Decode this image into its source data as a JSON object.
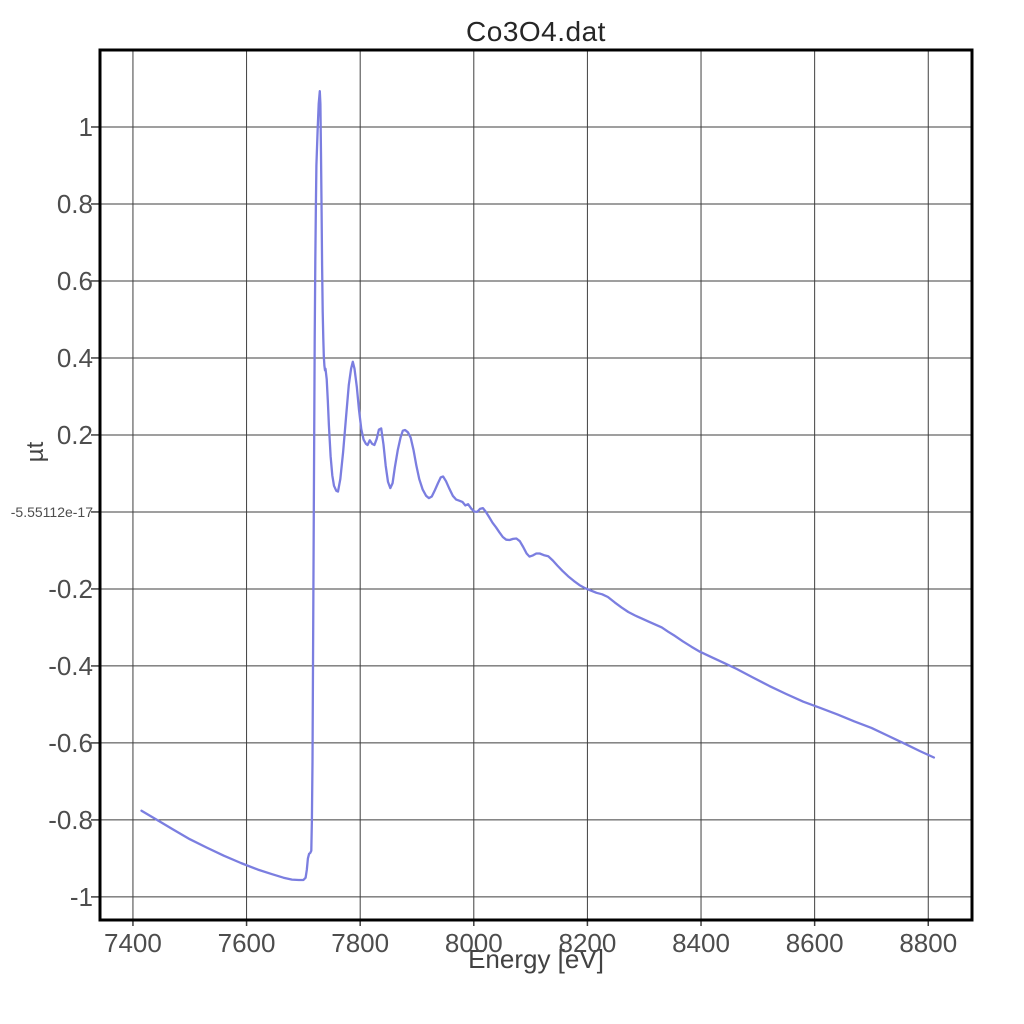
{
  "chart": {
    "title": "Co3O4.dat",
    "xlabel": "Energy [eV]",
    "ylabel": "µt"
  },
  "colors": {
    "line": "#7b7ee0",
    "grid": "#3f3f3f",
    "axis_border": "#000000",
    "tick_label": "#4d4d4d",
    "background": "#ffffff"
  },
  "chart_data": {
    "type": "line",
    "title": "Co3O4.dat",
    "xlabel": "Energy [eV]",
    "ylabel": "µt",
    "xlim": [
      7342,
      8877
    ],
    "ylim": [
      -1.06,
      1.2
    ],
    "grid": true,
    "legend": false,
    "x_ticks": {
      "values": [
        7400,
        7600,
        7800,
        8000,
        8200,
        8400,
        8600,
        8800
      ],
      "labels": [
        "7400",
        "7600",
        "7800",
        "8000",
        "8200",
        "8400",
        "8600",
        "8800"
      ]
    },
    "y_ticks": {
      "values": [
        1,
        0.8,
        0.6,
        0.4,
        0.2,
        0,
        -0.2,
        -0.4,
        -0.6,
        -0.8,
        -1
      ],
      "labels": [
        "1",
        "0.8",
        "0.6",
        "0.4",
        "0.2",
        "-5.55112e-17",
        "-0.2",
        "-0.4",
        "-0.6",
        "-0.8",
        "-1"
      ]
    },
    "series": [
      {
        "name": "Co3O4.dat",
        "color": "#7b7ee0",
        "points": [
          [
            7415,
            -0.776
          ],
          [
            7440,
            -0.798
          ],
          [
            7470,
            -0.824
          ],
          [
            7500,
            -0.85
          ],
          [
            7530,
            -0.872
          ],
          [
            7560,
            -0.893
          ],
          [
            7590,
            -0.912
          ],
          [
            7620,
            -0.929
          ],
          [
            7645,
            -0.941
          ],
          [
            7665,
            -0.95
          ],
          [
            7680,
            -0.955
          ],
          [
            7692,
            -0.956
          ],
          [
            7700,
            -0.956
          ],
          [
            7704,
            -0.95
          ],
          [
            7706,
            -0.93
          ],
          [
            7708,
            -0.9
          ],
          [
            7710,
            -0.888
          ],
          [
            7712,
            -0.886
          ],
          [
            7714,
            -0.88
          ],
          [
            7715,
            -0.8
          ],
          [
            7716,
            -0.65
          ],
          [
            7717,
            -0.4
          ],
          [
            7718,
            -0.1
          ],
          [
            7719,
            0.2
          ],
          [
            7720,
            0.45
          ],
          [
            7721,
            0.65
          ],
          [
            7722,
            0.8
          ],
          [
            7723,
            0.9
          ],
          [
            7725,
            0.99
          ],
          [
            7727,
            1.06
          ],
          [
            7729,
            1.093
          ],
          [
            7730,
            1.06
          ],
          [
            7731,
            0.93
          ],
          [
            7732,
            0.78
          ],
          [
            7733,
            0.64
          ],
          [
            7734,
            0.52
          ],
          [
            7735,
            0.45
          ],
          [
            7736,
            0.405
          ],
          [
            7737,
            0.38
          ],
          [
            7738,
            0.368
          ],
          [
            7739,
            0.372
          ],
          [
            7741,
            0.345
          ],
          [
            7743,
            0.29
          ],
          [
            7745,
            0.225
          ],
          [
            7748,
            0.145
          ],
          [
            7751,
            0.095
          ],
          [
            7754,
            0.068
          ],
          [
            7758,
            0.055
          ],
          [
            7761,
            0.053
          ],
          [
            7765,
            0.085
          ],
          [
            7770,
            0.155
          ],
          [
            7775,
            0.245
          ],
          [
            7780,
            0.33
          ],
          [
            7784,
            0.372
          ],
          [
            7787,
            0.39
          ],
          [
            7790,
            0.372
          ],
          [
            7794,
            0.325
          ],
          [
            7798,
            0.265
          ],
          [
            7802,
            0.215
          ],
          [
            7806,
            0.188
          ],
          [
            7810,
            0.177
          ],
          [
            7813,
            0.174
          ],
          [
            7817,
            0.186
          ],
          [
            7821,
            0.177
          ],
          [
            7825,
            0.174
          ],
          [
            7829,
            0.19
          ],
          [
            7833,
            0.214
          ],
          [
            7837,
            0.217
          ],
          [
            7841,
            0.175
          ],
          [
            7845,
            0.12
          ],
          [
            7849,
            0.078
          ],
          [
            7853,
            0.062
          ],
          [
            7857,
            0.075
          ],
          [
            7861,
            0.115
          ],
          [
            7866,
            0.16
          ],
          [
            7871,
            0.193
          ],
          [
            7875,
            0.211
          ],
          [
            7879,
            0.213
          ],
          [
            7884,
            0.207
          ],
          [
            7889,
            0.193
          ],
          [
            7894,
            0.16
          ],
          [
            7899,
            0.12
          ],
          [
            7904,
            0.085
          ],
          [
            7910,
            0.058
          ],
          [
            7916,
            0.042
          ],
          [
            7921,
            0.036
          ],
          [
            7926,
            0.04
          ],
          [
            7931,
            0.055
          ],
          [
            7937,
            0.075
          ],
          [
            7942,
            0.09
          ],
          [
            7946,
            0.092
          ],
          [
            7951,
            0.08
          ],
          [
            7957,
            0.06
          ],
          [
            7963,
            0.042
          ],
          [
            7969,
            0.032
          ],
          [
            7975,
            0.029
          ],
          [
            7980,
            0.026
          ],
          [
            7985,
            0.017
          ],
          [
            7990,
            0.02
          ],
          [
            7996,
            0.008
          ],
          [
            8001,
            0.001
          ],
          [
            8006,
            0.0
          ],
          [
            8011,
            0.008
          ],
          [
            8016,
            0.01
          ],
          [
            8021,
            0.001
          ],
          [
            8027,
            -0.013
          ],
          [
            8033,
            -0.028
          ],
          [
            8039,
            -0.04
          ],
          [
            8045,
            -0.053
          ],
          [
            8051,
            -0.065
          ],
          [
            8057,
            -0.072
          ],
          [
            8063,
            -0.073
          ],
          [
            8069,
            -0.07
          ],
          [
            8075,
            -0.069
          ],
          [
            8081,
            -0.076
          ],
          [
            8087,
            -0.091
          ],
          [
            8093,
            -0.108
          ],
          [
            8098,
            -0.116
          ],
          [
            8104,
            -0.113
          ],
          [
            8110,
            -0.108
          ],
          [
            8116,
            -0.108
          ],
          [
            8123,
            -0.112
          ],
          [
            8131,
            -0.115
          ],
          [
            8139,
            -0.126
          ],
          [
            8147,
            -0.139
          ],
          [
            8156,
            -0.153
          ],
          [
            8166,
            -0.167
          ],
          [
            8176,
            -0.179
          ],
          [
            8186,
            -0.19
          ],
          [
            8196,
            -0.198
          ],
          [
            8206,
            -0.204
          ],
          [
            8216,
            -0.21
          ],
          [
            8226,
            -0.214
          ],
          [
            8236,
            -0.221
          ],
          [
            8248,
            -0.235
          ],
          [
            8260,
            -0.248
          ],
          [
            8272,
            -0.26
          ],
          [
            8284,
            -0.269
          ],
          [
            8296,
            -0.277
          ],
          [
            8308,
            -0.285
          ],
          [
            8320,
            -0.293
          ],
          [
            8331,
            -0.3
          ],
          [
            8342,
            -0.311
          ],
          [
            8354,
            -0.322
          ],
          [
            8368,
            -0.336
          ],
          [
            8383,
            -0.35
          ],
          [
            8398,
            -0.363
          ],
          [
            8418,
            -0.377
          ],
          [
            8440,
            -0.392
          ],
          [
            8463,
            -0.408
          ],
          [
            8490,
            -0.429
          ],
          [
            8520,
            -0.452
          ],
          [
            8550,
            -0.473
          ],
          [
            8580,
            -0.493
          ],
          [
            8610,
            -0.509
          ],
          [
            8640,
            -0.526
          ],
          [
            8670,
            -0.544
          ],
          [
            8700,
            -0.561
          ],
          [
            8730,
            -0.582
          ],
          [
            8760,
            -0.603
          ],
          [
            8785,
            -0.621
          ],
          [
            8810,
            -0.638
          ]
        ]
      }
    ]
  }
}
